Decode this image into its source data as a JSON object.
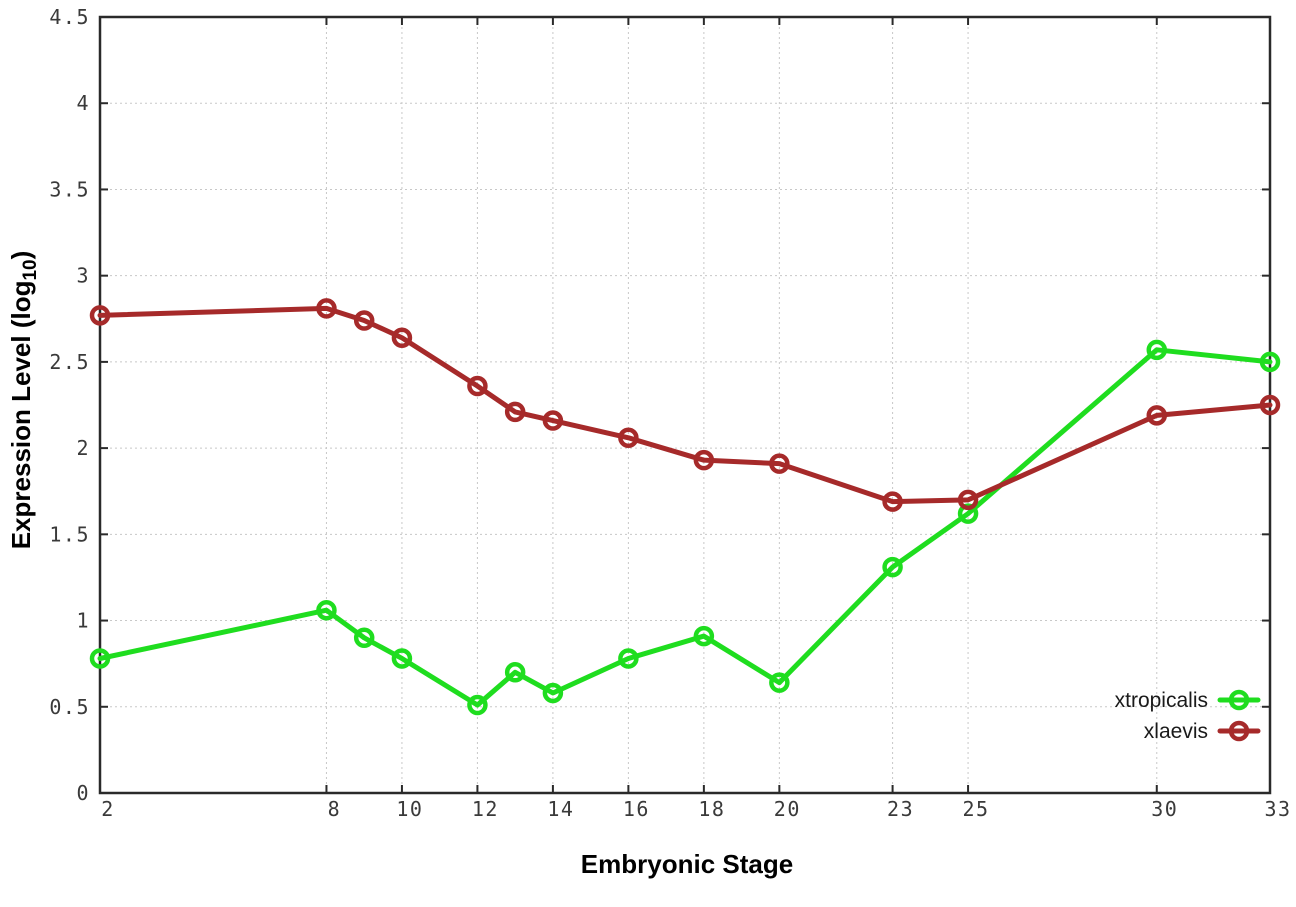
{
  "figure": {
    "ylabel_parts": {
      "pre": "Expression Level (log",
      "sub": "10",
      "post": ")"
    }
  },
  "chart_data": {
    "type": "line",
    "title": "",
    "xlabel": "Embryonic Stage",
    "ylabel": "Expression Level (log10)",
    "xlim": [
      2,
      33
    ],
    "ylim": [
      0,
      4.5
    ],
    "grid": true,
    "grid_style": "dotted",
    "legend_position": "inside-bottom-right",
    "x_ticks": [
      2,
      8,
      10,
      12,
      14,
      16,
      18,
      20,
      23,
      25,
      30,
      33
    ],
    "x_tick_labels": [
      "2",
      "8",
      "10",
      "12",
      "14",
      "16",
      "18",
      "20",
      "23",
      "25",
      "30",
      "33"
    ],
    "y_ticks": [
      0,
      0.5,
      1,
      1.5,
      2,
      2.5,
      3,
      3.5,
      4,
      4.5
    ],
    "y_tick_labels": [
      "0",
      "0.5",
      "1",
      "1.5",
      "2",
      "2.5",
      "3",
      "3.5",
      "4",
      "4.5"
    ],
    "x": [
      2,
      8,
      9,
      10,
      12,
      13,
      14,
      16,
      18,
      20,
      23,
      25,
      30,
      33
    ],
    "series": [
      {
        "name": "xtropicalis",
        "color": "#1FDD1F",
        "marker": "open-circle",
        "values": [
          0.78,
          1.06,
          0.9,
          0.78,
          0.51,
          0.7,
          0.58,
          0.78,
          0.91,
          0.64,
          1.31,
          1.62,
          2.57,
          2.5
        ]
      },
      {
        "name": "xlaevis",
        "color": "#A62A2A",
        "marker": "open-circle",
        "values": [
          2.77,
          2.81,
          2.74,
          2.64,
          2.36,
          2.21,
          2.16,
          2.06,
          1.93,
          1.91,
          1.69,
          1.7,
          2.19,
          2.25
        ]
      }
    ]
  },
  "colors": {
    "background": "#ffffff",
    "border": "#2a2a2a",
    "grid": "#c8c8c8",
    "tick_text": "#3a3a3a",
    "series_green": "#1FDD1F",
    "series_red": "#A62A2A"
  }
}
